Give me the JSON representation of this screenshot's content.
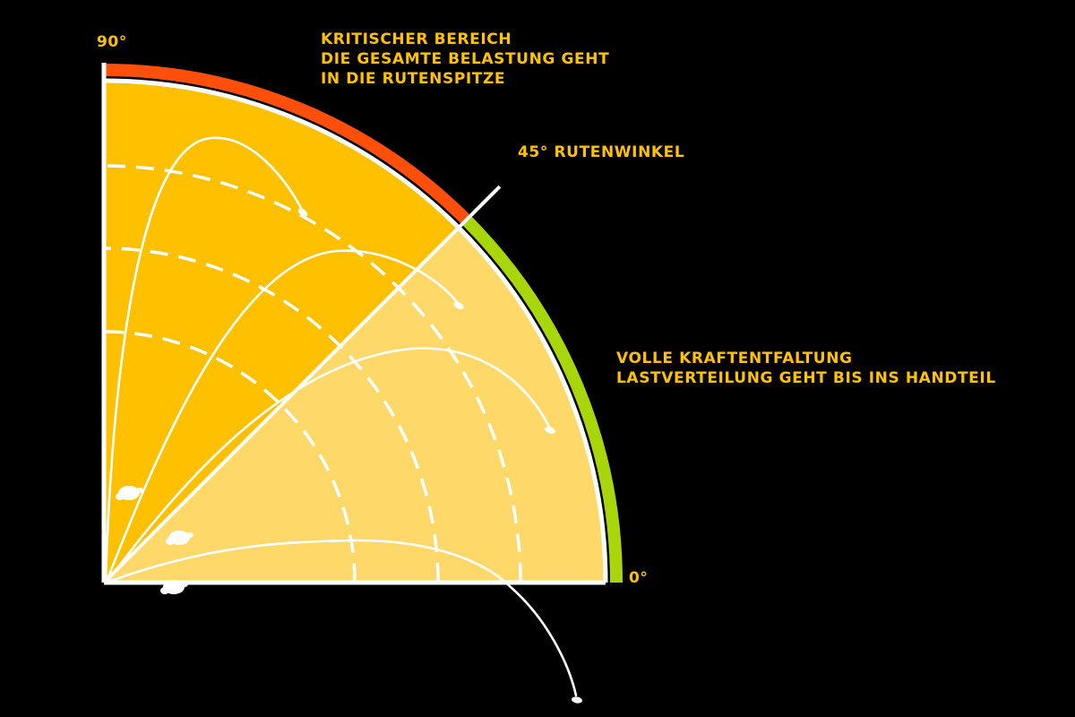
{
  "colors": {
    "background": "#000000",
    "label_text": "#ffc200",
    "critical_zone": "#ffc000",
    "power_zone": "#ffd86a",
    "critical_arc": "#ff4f0a",
    "power_arc": "#a9d60a",
    "lines": "#ffffff"
  },
  "angles": {
    "top": "90°",
    "bottom": "0°",
    "divider": "45° RUTENWINKEL",
    "divider_degrees": 45
  },
  "zones": {
    "critical": {
      "from_degrees": 45,
      "to_degrees": 90,
      "lines": [
        "KRITISCHER BEREICH",
        "DIE GESAMTE BELASTUNG GEHT",
        "IN DIE RUTENSPITZE"
      ]
    },
    "power": {
      "from_degrees": 0,
      "to_degrees": 45,
      "lines": [
        "VOLLE KRAFTENTFALTUNG",
        "LASTVERTEILUNG GEHT BIS INS HANDTEIL"
      ]
    }
  },
  "icons": {
    "rod": "fishing-rod-curve-icon",
    "reel": "reel-icon",
    "lure": "lure-icon"
  }
}
